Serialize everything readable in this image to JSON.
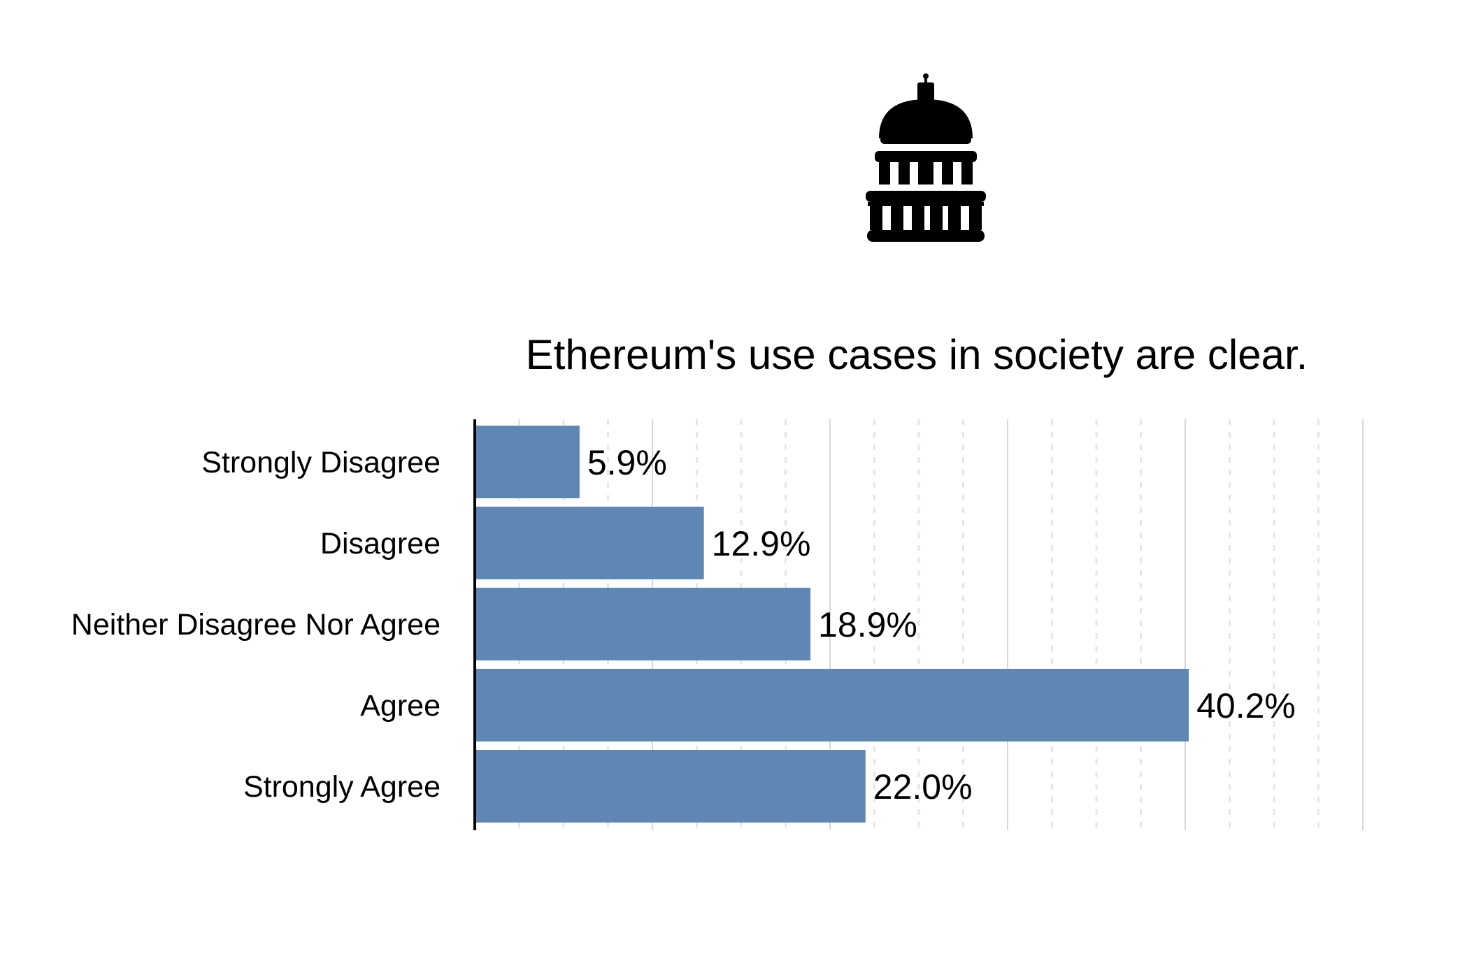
{
  "icon": "capitol-building-icon",
  "colors": {
    "bar": "#5f87b4",
    "axis": "#000000",
    "grid_major": "#d8d8d8",
    "grid_minor": "#e6e6e6",
    "text": "#000000",
    "background": "#ffffff"
  },
  "chart_data": {
    "type": "bar",
    "orientation": "horizontal",
    "title": "Ethereum's use cases in society are clear.",
    "xlabel": "",
    "ylabel": "",
    "categories": [
      "Strongly Disagree",
      "Disagree",
      "Neither Disagree Nor Agree",
      "Agree",
      "Strongly Agree"
    ],
    "values": [
      5.9,
      12.9,
      18.9,
      40.2,
      22.0
    ],
    "data_labels": [
      "5.9%",
      "12.9%",
      "18.9%",
      "40.2%",
      "22.0%"
    ],
    "xlim": [
      0,
      50
    ],
    "major_grid_step": 10,
    "minor_grid_step": 2.5,
    "grid": true,
    "x_tick_labels_shown": false,
    "legend": "none"
  }
}
